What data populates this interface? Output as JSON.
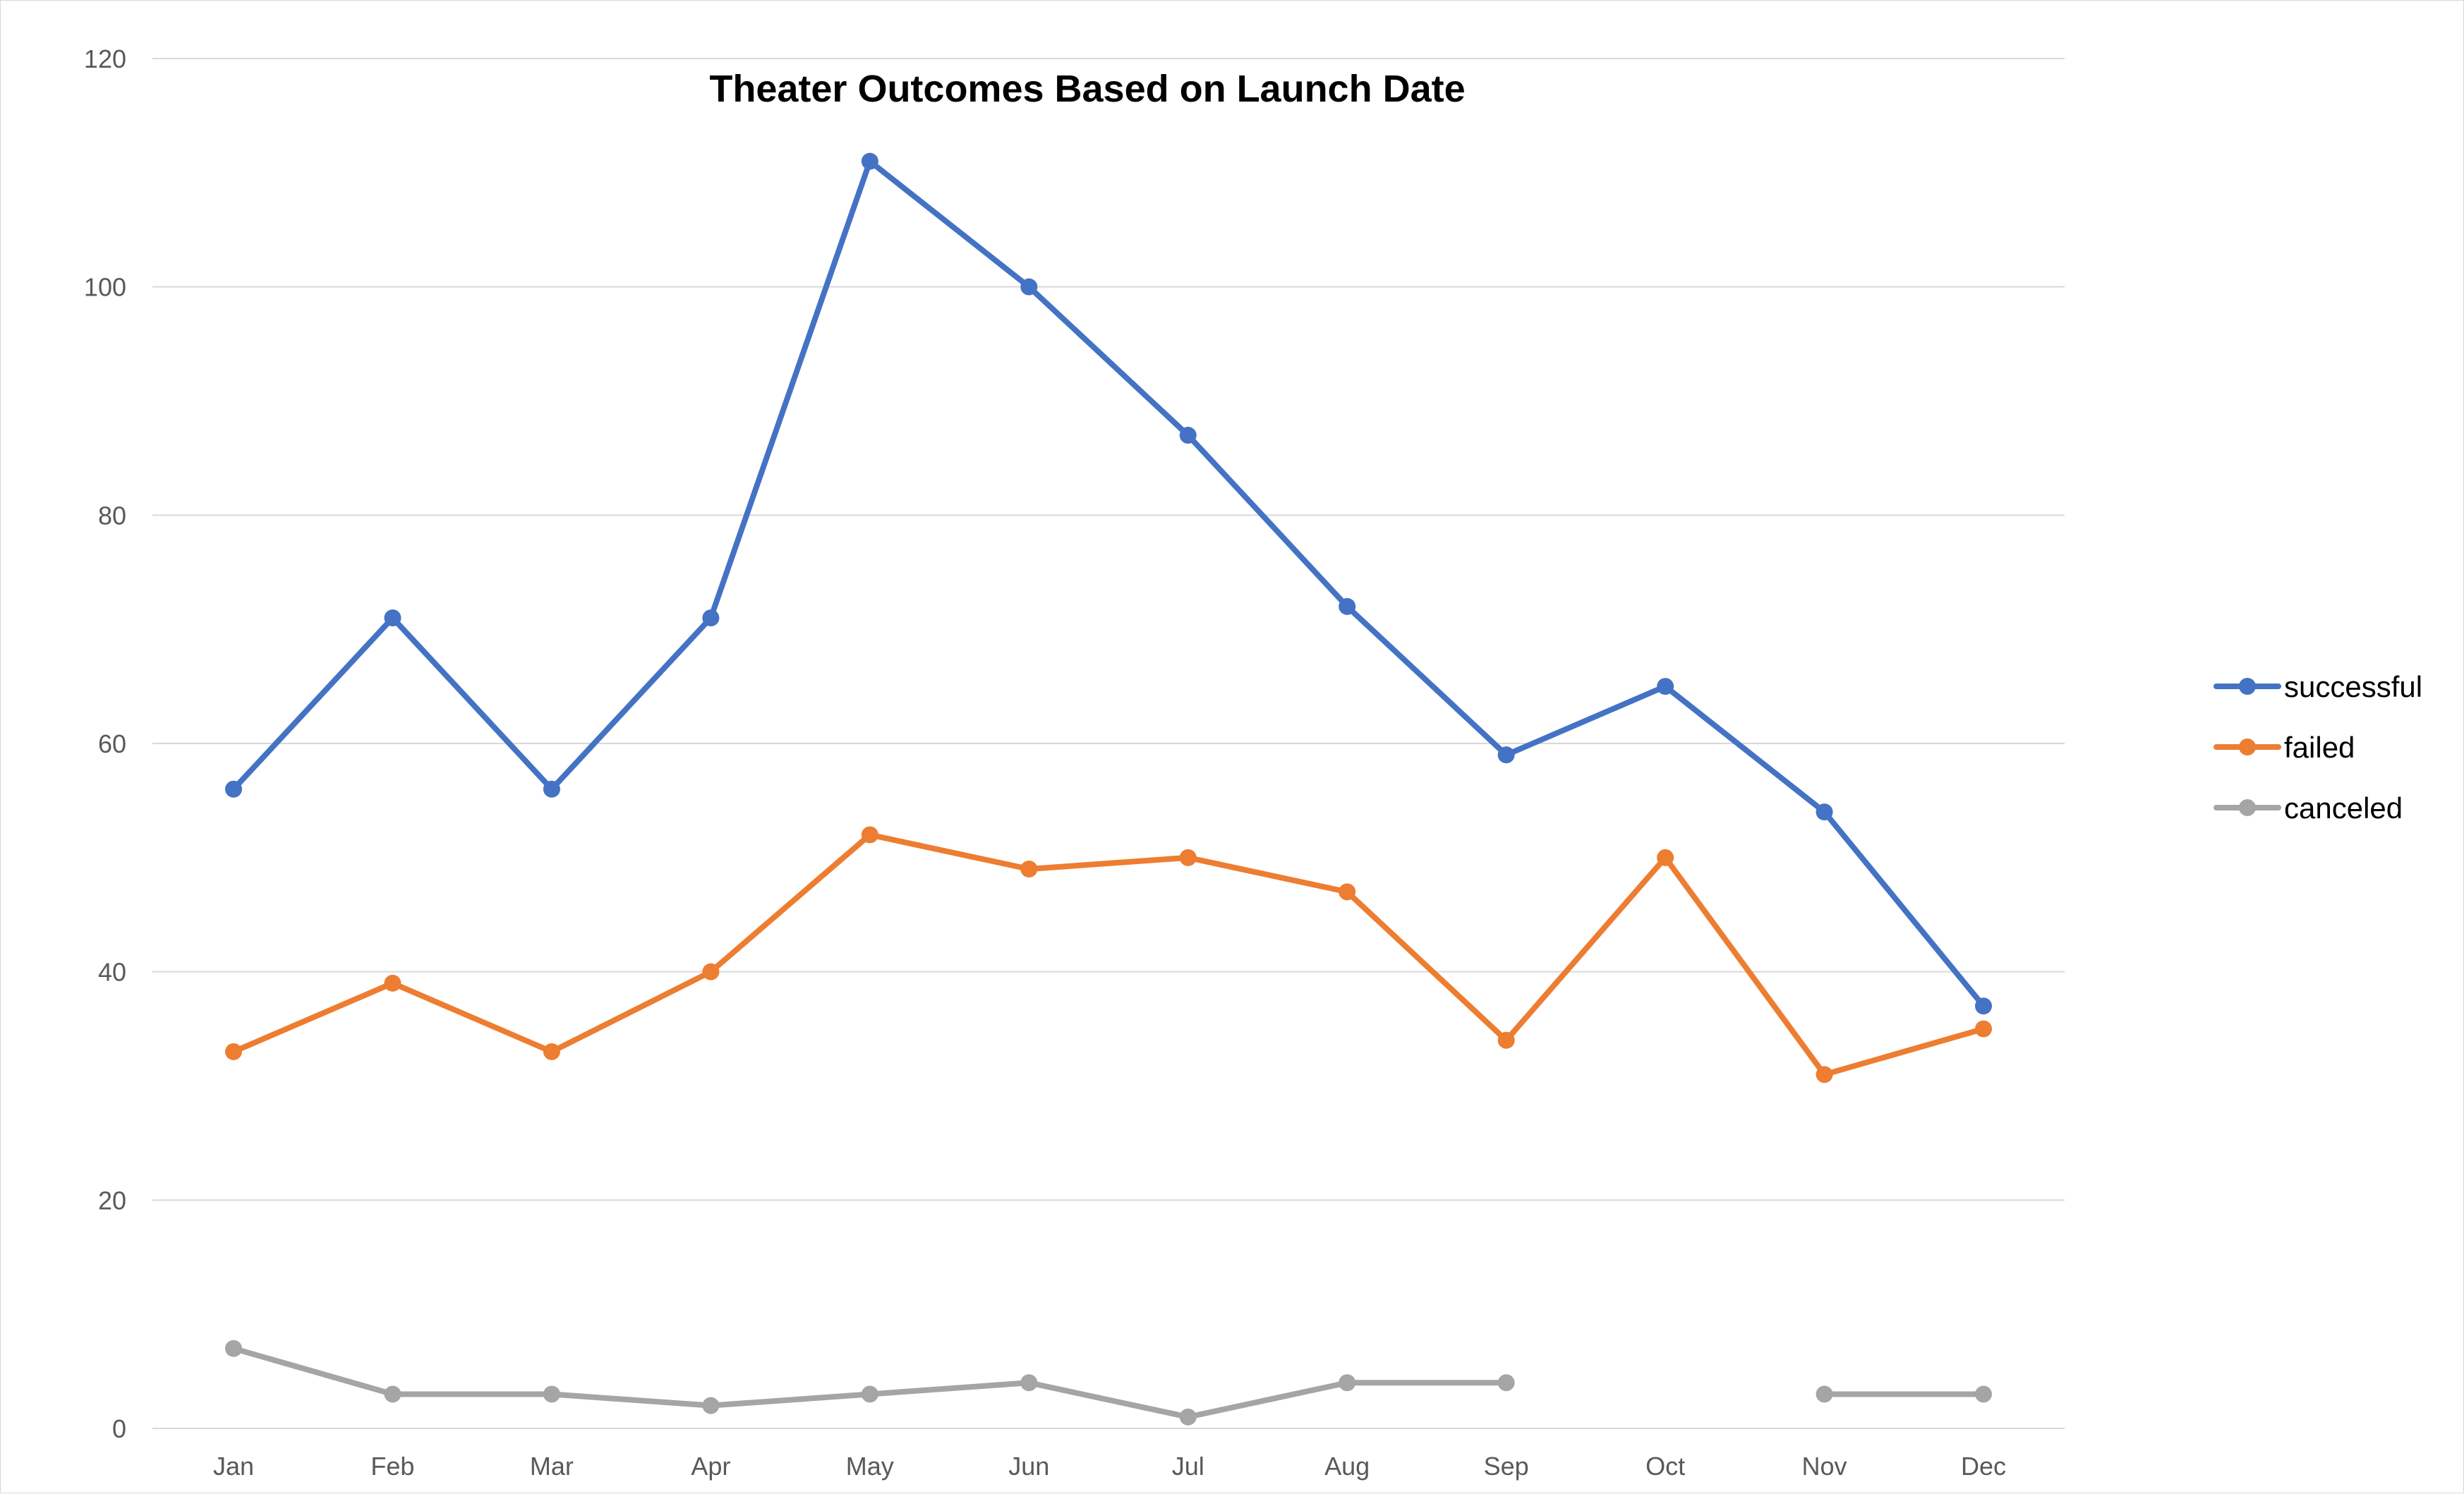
{
  "chart_data": {
    "type": "line",
    "title": "Theater Outcomes Based on Launch Date",
    "xlabel": "",
    "ylabel": "",
    "categories": [
      "Jan",
      "Feb",
      "Mar",
      "Apr",
      "May",
      "Jun",
      "Jul",
      "Aug",
      "Sep",
      "Oct",
      "Nov",
      "Dec"
    ],
    "ylim": [
      0,
      120
    ],
    "yticks": [
      0,
      20,
      40,
      60,
      80,
      100,
      120
    ],
    "grid": true,
    "legend_position": "right",
    "markers": true,
    "series": [
      {
        "name": "successful",
        "color": "#4472C4",
        "values": [
          56,
          71,
          56,
          71,
          111,
          100,
          87,
          72,
          59,
          65,
          54,
          37
        ]
      },
      {
        "name": "failed",
        "color": "#ED7D31",
        "values": [
          33,
          39,
          33,
          40,
          52,
          49,
          50,
          47,
          34,
          50,
          31,
          35
        ]
      },
      {
        "name": "canceled",
        "color": "#A5A5A5",
        "values": [
          7,
          3,
          3,
          2,
          3,
          4,
          1,
          4,
          4,
          null,
          3,
          3
        ]
      }
    ]
  }
}
